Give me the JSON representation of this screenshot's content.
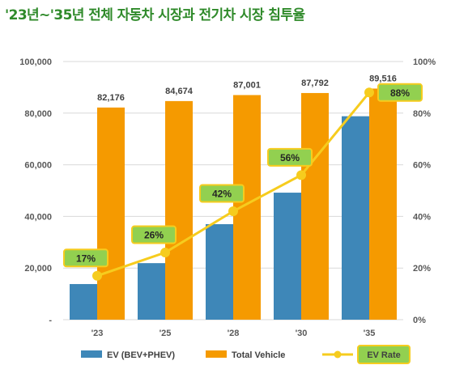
{
  "title": "'23년~'35년 전체 자동차 시장과 전기차 시장 침투율",
  "chart_data": {
    "type": "bar",
    "categories": [
      "'23",
      "'25",
      "'28",
      "'30",
      "'35"
    ],
    "series": [
      {
        "name": "EV (BEV+PHEV)",
        "kind": "bar",
        "axis": "left",
        "color": "#3e87b8",
        "values": [
          13800,
          21900,
          37000,
          49200,
          78800
        ]
      },
      {
        "name": "Total Vehicle",
        "kind": "bar",
        "axis": "left",
        "color": "#f59a00",
        "values": [
          82176,
          84674,
          87001,
          87792,
          89516
        ],
        "data_labels": [
          "82,176",
          "84,674",
          "87,001",
          "87,792",
          "89,516"
        ]
      },
      {
        "name": "EV Rate",
        "kind": "line",
        "axis": "right",
        "color": "#f6cc1e",
        "values": [
          0.17,
          0.26,
          0.42,
          0.56,
          0.88
        ],
        "data_labels": [
          "17%",
          "26%",
          "42%",
          "56%",
          "88%"
        ],
        "label_fill": "#92d050",
        "label_border": "#f6cc1e"
      }
    ],
    "ylim_left": [
      0,
      100000
    ],
    "yticks_left": [
      "-",
      "20,000",
      "40,000",
      "60,000",
      "80,000",
      "100,000"
    ],
    "ylim_right": [
      0,
      1
    ],
    "yticks_right": [
      "0%",
      "20%",
      "40%",
      "60%",
      "80%",
      "100%"
    ],
    "grid": true,
    "legend_position": "bottom"
  }
}
